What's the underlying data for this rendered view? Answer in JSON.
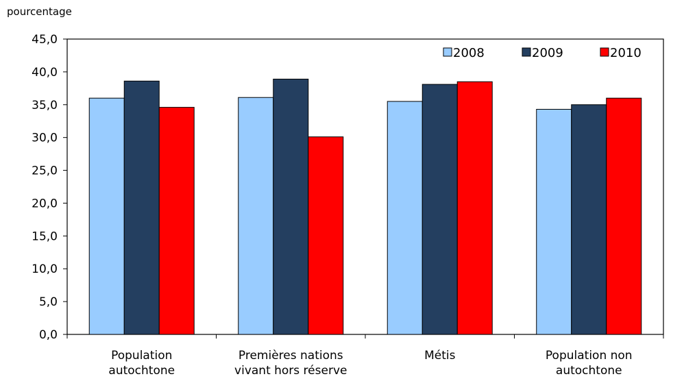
{
  "chart_data": {
    "type": "bar",
    "ylabel": "pourcentage",
    "xlabel": "",
    "ylim": [
      0,
      45
    ],
    "ytick_step": 5,
    "yticks": [
      "0,0",
      "5,0",
      "10,0",
      "15,0",
      "20,0",
      "25,0",
      "30,0",
      "35,0",
      "40,0",
      "45,0"
    ],
    "categories": [
      [
        "Population",
        "autochtone"
      ],
      [
        "Premières nations",
        "vivant hors réserve"
      ],
      [
        "Métis"
      ],
      [
        "Population non",
        "autochtone"
      ]
    ],
    "series": [
      {
        "name": "2008",
        "color": "#99ccff",
        "values": [
          36.0,
          36.1,
          35.5,
          34.3
        ]
      },
      {
        "name": "2009",
        "color": "#243f60",
        "values": [
          38.6,
          38.9,
          38.1,
          35.0
        ]
      },
      {
        "name": "2010",
        "color": "#ff0000",
        "values": [
          34.6,
          30.1,
          38.5,
          36.0
        ]
      }
    ],
    "legend_position": "top-right",
    "grid": false
  }
}
